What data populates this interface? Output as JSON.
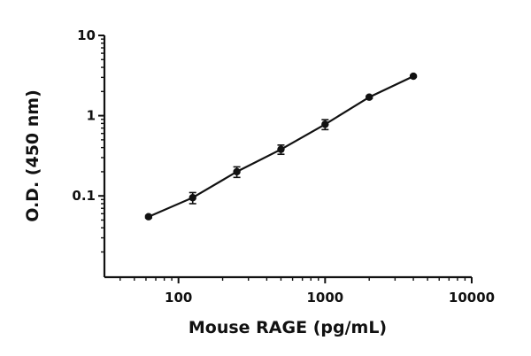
{
  "chart_data": {
    "type": "scatter",
    "xlabel": "Mouse RAGE (pg/mL)",
    "ylabel": "O.D. (450 nm)",
    "x_scale": "log",
    "y_scale": "log",
    "xlim": [
      31.25,
      10000
    ],
    "ylim": [
      0.0097,
      10
    ],
    "x_ticks": [
      100,
      1000,
      10000
    ],
    "x_tick_labels": [
      "100",
      "1000",
      "10000"
    ],
    "y_ticks": [
      0.1,
      1,
      10
    ],
    "y_tick_labels": [
      "0.1",
      "1",
      "10"
    ],
    "grid": false,
    "legend": "none",
    "series": [
      {
        "x": [
          62.5,
          125,
          250,
          500,
          1000,
          2000,
          4000
        ],
        "y": [
          0.055,
          0.095,
          0.2,
          0.38,
          0.78,
          1.7,
          3.1
        ],
        "error": [
          0.002,
          0.015,
          0.03,
          0.05,
          0.11,
          0.06,
          0.08
        ]
      }
    ],
    "colors": {
      "marker": "#111111",
      "line": "#111111"
    }
  }
}
